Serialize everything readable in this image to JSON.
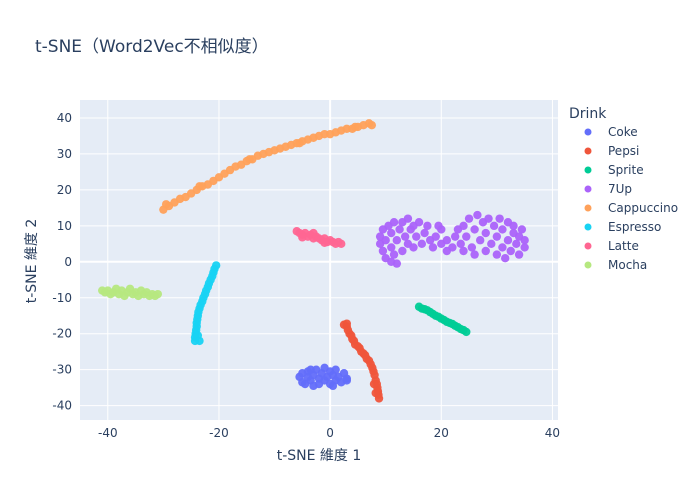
{
  "chart_data": {
    "type": "scatter",
    "title": "t-SNE（Word2Vec不相似度）",
    "xlabel": "t-SNE 維度 1",
    "ylabel": "t-SNE 維度 2",
    "xlim": [
      -45,
      41
    ],
    "ylim": [
      -44,
      45
    ],
    "xticks": [
      -40,
      -20,
      0,
      20,
      40
    ],
    "yticks": [
      -40,
      -30,
      -20,
      -10,
      0,
      10,
      20,
      30,
      40
    ],
    "grid": true,
    "legend": {
      "title": "Drink",
      "position": "right"
    },
    "series": [
      {
        "name": "Coke",
        "color": "#636efa",
        "points": [
          [
            -5.5,
            -32
          ],
          [
            -5,
            -31
          ],
          [
            -5,
            -33.5
          ],
          [
            -4.5,
            -34
          ],
          [
            -4,
            -32
          ],
          [
            -4,
            -30.5
          ],
          [
            -3.5,
            -33
          ],
          [
            -3,
            -31.5
          ],
          [
            -3,
            -34.5
          ],
          [
            -2.5,
            -30
          ],
          [
            -2,
            -32.5
          ],
          [
            -2,
            -34
          ],
          [
            -1.5,
            -31
          ],
          [
            -1,
            -29.5
          ],
          [
            -1,
            -33
          ],
          [
            -0.5,
            -32
          ],
          [
            0,
            -30.5
          ],
          [
            0,
            -34
          ],
          [
            0.5,
            -31.5
          ],
          [
            1,
            -33
          ],
          [
            1,
            -30
          ],
          [
            1.5,
            -32
          ],
          [
            2,
            -33.5
          ],
          [
            2.5,
            -31
          ],
          [
            3,
            -32.5
          ],
          [
            3,
            -33
          ],
          [
            -3.5,
            -30
          ],
          [
            0.5,
            -34.5
          ]
        ]
      },
      {
        "name": "Pepsi",
        "color": "#ef553b",
        "points": [
          [
            2.5,
            -17.5
          ],
          [
            3,
            -18
          ],
          [
            3.2,
            -19
          ],
          [
            3.5,
            -20
          ],
          [
            3.8,
            -20.5
          ],
          [
            4,
            -21.5
          ],
          [
            4.3,
            -22
          ],
          [
            4.5,
            -23
          ],
          [
            5,
            -23.5
          ],
          [
            5.3,
            -24
          ],
          [
            5.6,
            -25
          ],
          [
            6,
            -25.5
          ],
          [
            6.3,
            -26
          ],
          [
            6.6,
            -27
          ],
          [
            7,
            -27.5
          ],
          [
            7.3,
            -28.5
          ],
          [
            7.6,
            -29.5
          ],
          [
            7.8,
            -30.5
          ],
          [
            8,
            -31.5
          ],
          [
            8.2,
            -33
          ],
          [
            8.4,
            -34
          ],
          [
            8.5,
            -35
          ],
          [
            8.6,
            -36
          ],
          [
            8.7,
            -37
          ],
          [
            8.8,
            -38
          ],
          [
            8.2,
            -36.5
          ],
          [
            7.9,
            -34
          ],
          [
            3,
            -17.2
          ]
        ]
      },
      {
        "name": "Sprite",
        "color": "#00cc96",
        "points": [
          [
            16,
            -12.5
          ],
          [
            16.5,
            -13
          ],
          [
            17,
            -13.2
          ],
          [
            17.5,
            -13.5
          ],
          [
            18,
            -14
          ],
          [
            18.5,
            -14.5
          ],
          [
            19,
            -15
          ],
          [
            19.5,
            -15.3
          ],
          [
            20,
            -15.8
          ],
          [
            20.5,
            -16.2
          ],
          [
            21,
            -16.7
          ],
          [
            21.5,
            -17
          ],
          [
            22,
            -17.3
          ],
          [
            22.5,
            -17.8
          ],
          [
            23,
            -18.2
          ],
          [
            23.5,
            -18.7
          ],
          [
            24,
            -19
          ],
          [
            24.5,
            -19.5
          ]
        ]
      },
      {
        "name": "7Up",
        "color": "#ab63fa",
        "points": [
          [
            9,
            5
          ],
          [
            9,
            7
          ],
          [
            9.5,
            3
          ],
          [
            9.5,
            9
          ],
          [
            10,
            1
          ],
          [
            10,
            6
          ],
          [
            10.5,
            10
          ],
          [
            11,
            4
          ],
          [
            11,
            8
          ],
          [
            11.5,
            2
          ],
          [
            11.5,
            11
          ],
          [
            12,
            6
          ],
          [
            12.5,
            9
          ],
          [
            13,
            3
          ],
          [
            13,
            11
          ],
          [
            13.5,
            7
          ],
          [
            14,
            5
          ],
          [
            14,
            12
          ],
          [
            14.5,
            9
          ],
          [
            15,
            4
          ],
          [
            15,
            10
          ],
          [
            15.5,
            7
          ],
          [
            16,
            11
          ],
          [
            16.5,
            5
          ],
          [
            17,
            8
          ],
          [
            17.5,
            10
          ],
          [
            18,
            6
          ],
          [
            18.5,
            4
          ],
          [
            19,
            7
          ],
          [
            20,
            5
          ],
          [
            21,
            6
          ],
          [
            22,
            4
          ],
          [
            22.5,
            7
          ],
          [
            23,
            9
          ],
          [
            23.5,
            5
          ],
          [
            24,
            10
          ],
          [
            24.5,
            7
          ],
          [
            25,
            12
          ],
          [
            25.5,
            4
          ],
          [
            26,
            9
          ],
          [
            26.5,
            13
          ],
          [
            27,
            6
          ],
          [
            27.5,
            11
          ],
          [
            28,
            3
          ],
          [
            28,
            8
          ],
          [
            28.5,
            12
          ],
          [
            29,
            5
          ],
          [
            29.5,
            10
          ],
          [
            30,
            2
          ],
          [
            30,
            7
          ],
          [
            30.5,
            12
          ],
          [
            31,
            4
          ],
          [
            31,
            9
          ],
          [
            31.5,
            1
          ],
          [
            32,
            6
          ],
          [
            32,
            11
          ],
          [
            32.5,
            3
          ],
          [
            33,
            8
          ],
          [
            33,
            10
          ],
          [
            33.5,
            5
          ],
          [
            34,
            2
          ],
          [
            34,
            7
          ],
          [
            34.5,
            9
          ],
          [
            35,
            4
          ],
          [
            35,
            6
          ],
          [
            12,
            -0.5
          ],
          [
            11,
            0
          ],
          [
            20,
            9
          ],
          [
            21,
            3
          ],
          [
            19.5,
            10
          ],
          [
            24,
            3
          ],
          [
            26,
            2
          ]
        ]
      },
      {
        "name": "Cappuccino",
        "color": "#ffa15a",
        "points": [
          [
            -30,
            14.5
          ],
          [
            -29,
            15.5
          ],
          [
            -28,
            16.5
          ],
          [
            -27,
            17.5
          ],
          [
            -26,
            18
          ],
          [
            -25,
            19
          ],
          [
            -24,
            20
          ],
          [
            -23,
            21
          ],
          [
            -22,
            21.5
          ],
          [
            -21,
            22.5
          ],
          [
            -20,
            23.5
          ],
          [
            -19,
            24.5
          ],
          [
            -18,
            25.5
          ],
          [
            -17,
            26.5
          ],
          [
            -16,
            27
          ],
          [
            -15,
            28
          ],
          [
            -14,
            28.5
          ],
          [
            -13,
            29.5
          ],
          [
            -12,
            30
          ],
          [
            -11,
            30.5
          ],
          [
            -10,
            31
          ],
          [
            -9,
            31.5
          ],
          [
            -8,
            32
          ],
          [
            -7,
            32.5
          ],
          [
            -6,
            33
          ],
          [
            -5,
            33.5
          ],
          [
            -4,
            34
          ],
          [
            -3,
            34.5
          ],
          [
            -2,
            35
          ],
          [
            -1,
            35.5
          ],
          [
            0,
            35.5
          ],
          [
            1,
            36
          ],
          [
            2,
            36.5
          ],
          [
            3,
            37
          ],
          [
            4,
            37
          ],
          [
            5,
            37.5
          ],
          [
            6,
            38
          ],
          [
            7,
            38.5
          ],
          [
            7.5,
            38
          ],
          [
            -29.5,
            16
          ],
          [
            -23.5,
            21
          ],
          [
            -14.5,
            28.5
          ],
          [
            -5.5,
            33
          ],
          [
            4.5,
            37.5
          ]
        ]
      },
      {
        "name": "Espresso",
        "color": "#19d3f3",
        "points": [
          [
            -20.5,
            -1
          ],
          [
            -20.8,
            -2
          ],
          [
            -21,
            -3
          ],
          [
            -21.2,
            -4
          ],
          [
            -21.5,
            -5
          ],
          [
            -21.8,
            -6
          ],
          [
            -22,
            -7
          ],
          [
            -22.3,
            -8
          ],
          [
            -22.5,
            -9
          ],
          [
            -22.8,
            -10
          ],
          [
            -23,
            -11
          ],
          [
            -23.3,
            -12
          ],
          [
            -23.5,
            -13
          ],
          [
            -23.7,
            -14
          ],
          [
            -23.8,
            -15
          ],
          [
            -23.9,
            -16
          ],
          [
            -24,
            -17
          ],
          [
            -24,
            -18
          ],
          [
            -24.1,
            -19
          ],
          [
            -24.2,
            -20
          ],
          [
            -24.3,
            -21
          ],
          [
            -24.3,
            -22
          ],
          [
            -23.8,
            -20.5
          ],
          [
            -23.5,
            -22
          ]
        ]
      },
      {
        "name": "Latte",
        "color": "#ff6692",
        "points": [
          [
            -6,
            8.5
          ],
          [
            -5.5,
            8
          ],
          [
            -5,
            7.5
          ],
          [
            -4.5,
            8
          ],
          [
            -4,
            7
          ],
          [
            -3.5,
            7.5
          ],
          [
            -3,
            6.5
          ],
          [
            -2.5,
            7
          ],
          [
            -2,
            6.5
          ],
          [
            -1.5,
            6
          ],
          [
            -1,
            6.5
          ],
          [
            -0.5,
            5.5
          ],
          [
            0,
            6
          ],
          [
            0.5,
            5.5
          ],
          [
            1,
            5
          ],
          [
            1.5,
            5.5
          ],
          [
            2,
            5
          ],
          [
            -5,
            6.8
          ],
          [
            -3,
            8
          ],
          [
            -1,
            5.3
          ]
        ]
      },
      {
        "name": "Mocha",
        "color": "#b6e880",
        "points": [
          [
            -41,
            -8
          ],
          [
            -40.5,
            -8.5
          ],
          [
            -40,
            -8
          ],
          [
            -39.5,
            -9
          ],
          [
            -39,
            -8.5
          ],
          [
            -38.5,
            -7.5
          ],
          [
            -38,
            -9
          ],
          [
            -37.5,
            -8
          ],
          [
            -37,
            -9.5
          ],
          [
            -36.5,
            -8.5
          ],
          [
            -36,
            -7.5
          ],
          [
            -35.5,
            -9
          ],
          [
            -35,
            -8.5
          ],
          [
            -34.5,
            -9.5
          ],
          [
            -34,
            -8
          ],
          [
            -33.5,
            -9
          ],
          [
            -33,
            -8.5
          ],
          [
            -32.5,
            -9.5
          ],
          [
            -32,
            -9
          ],
          [
            -31.5,
            -9.5
          ],
          [
            -31,
            -9
          ]
        ]
      }
    ]
  }
}
